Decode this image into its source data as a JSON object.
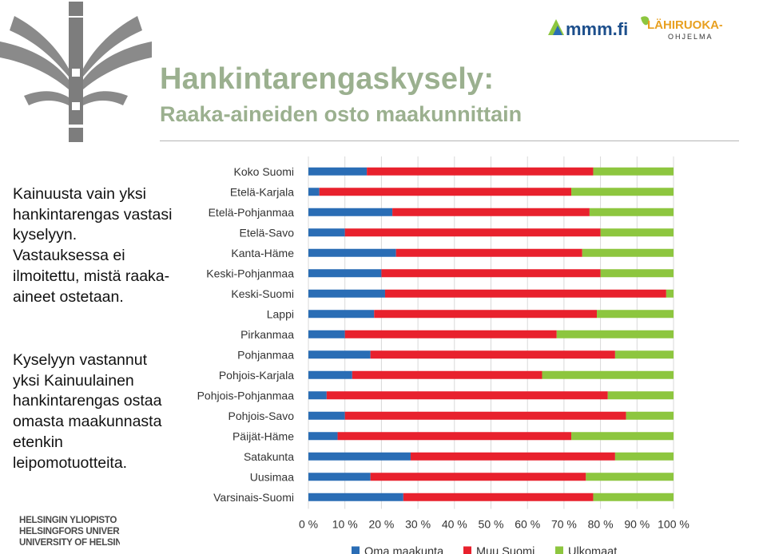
{
  "slide": {
    "title": "Hankintarengaskysely:",
    "subtitle": "Raaka-aineiden osto maakunnittain",
    "paragraphs": [
      "Kainuusta vain yksi hankintarengas vastasi kyselyyn. Vastauksessa ei ilmoitettu, mistä raaka-aineet ostetaan.",
      "Kyselyyn vastannut yksi Kainuulainen hankintarengas ostaa omasta maakunnasta etenkin leipomotuotteita."
    ],
    "university_lines": [
      "HELSINGIN YLIOPISTO",
      "HELSINGFORS UNIVERSITET",
      "UNIVERSITY OF HELSINKI"
    ],
    "logos": {
      "mmm": "mmm.fi",
      "lahiruoka": "LÄHIRUOKA-",
      "ohjelma": "OHJELMA"
    },
    "colors": {
      "title": "#9bb08f",
      "oma": "#2a6db5",
      "muu": "#e8212d",
      "ulko": "#8dc63f"
    }
  },
  "chart_data": {
    "type": "bar",
    "orientation": "horizontal",
    "stacked": true,
    "categories": [
      "Koko Suomi",
      "Etelä-Karjala",
      "Etelä-Pohjanmaa",
      "Etelä-Savo",
      "Kanta-Häme",
      "Keski-Pohjanmaa",
      "Keski-Suomi",
      "Lappi",
      "Pirkanmaa",
      "Pohjanmaa",
      "Pohjois-Karjala",
      "Pohjois-Pohjanmaa",
      "Pohjois-Savo",
      "Päijät-Häme",
      "Satakunta",
      "Uusimaa",
      "Varsinais-Suomi"
    ],
    "series": [
      {
        "name": "Oma maakunta",
        "color": "#2a6db5",
        "values": [
          16,
          3,
          23,
          10,
          24,
          20,
          21,
          18,
          10,
          17,
          12,
          5,
          10,
          8,
          28,
          17,
          26
        ]
      },
      {
        "name": "Muu Suomi",
        "color": "#e8212d",
        "values": [
          62,
          69,
          54,
          70,
          51,
          60,
          77,
          61,
          58,
          67,
          52,
          77,
          77,
          64,
          56,
          59,
          52
        ]
      },
      {
        "name": "Ulkomaat",
        "color": "#8dc63f",
        "values": [
          22,
          28,
          23,
          20,
          25,
          20,
          2,
          21,
          32,
          16,
          36,
          18,
          13,
          28,
          16,
          24,
          22
        ]
      }
    ],
    "x_ticks": [
      "0 %",
      "10 %",
      "20 %",
      "30 %",
      "40 %",
      "50 %",
      "60 %",
      "70 %",
      "80 %",
      "90 %",
      "100 %"
    ],
    "xlim": [
      0,
      100
    ],
    "grid": true,
    "legend": "bottom"
  }
}
